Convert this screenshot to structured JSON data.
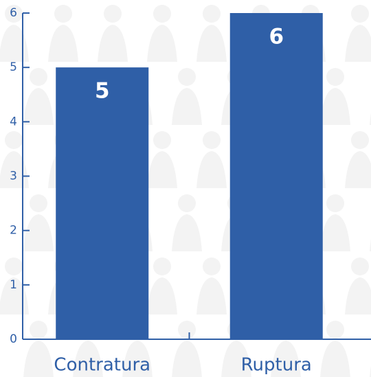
{
  "colors": {
    "bar": "#2f5fa7",
    "axis": "#2f5fa7",
    "text": "#2f5fa7",
    "data_label": "#ffffff",
    "watermark": "#f3f3f3"
  },
  "chart_data": {
    "type": "bar",
    "title": "",
    "xlabel": "",
    "ylabel": "",
    "categories": [
      "Contratura",
      "Ruptura"
    ],
    "values": [
      5,
      6
    ],
    "data_labels": [
      "5",
      "6"
    ],
    "ylim": [
      0,
      6
    ],
    "yticks": [
      "0",
      "1",
      "2",
      "3",
      "4",
      "5",
      "6"
    ],
    "grid": false,
    "legend": "none"
  }
}
